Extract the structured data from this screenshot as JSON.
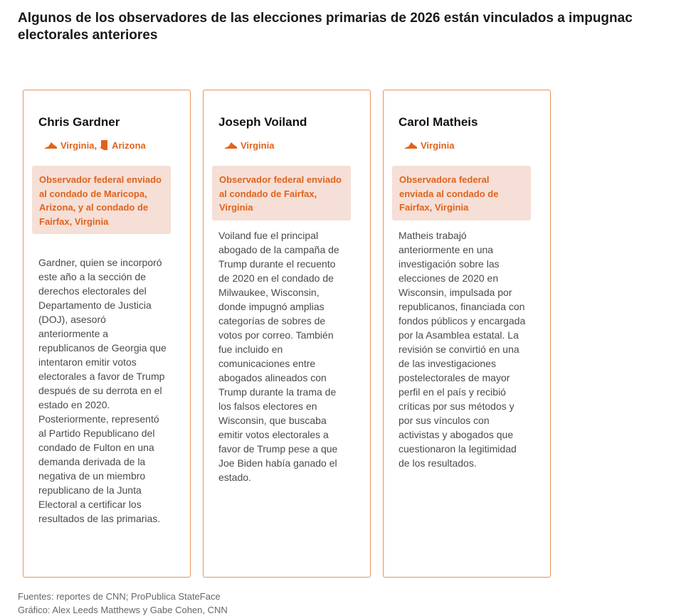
{
  "title": "Algunos de los observadores de las elecciones primarias de 2026 están vinculados a impugnac\nelectorales anteriores",
  "cards": [
    {
      "name": "Chris Gardner",
      "states": [
        {
          "icon": "virginia-icon",
          "label": "Virginia,"
        },
        {
          "icon": "arizona-icon",
          "label": "Arizona"
        }
      ],
      "role": "Observador federal enviado al condado de Maricopa, Arizona, y al condado de Fairfax, Virginia",
      "bio": "Gardner, quien se incorporó este año a la sección de derechos electorales del Departamento de Justicia (DOJ), asesoró anteriormente a republicanos de Georgia que intentaron emitir votos electorales a favor de Trump después de su derrota en el estado en 2020. Posteriormente, representó al Partido Republicano del condado de Fulton en una demanda derivada de la negativa de un miembro republicano de la Junta Electoral a certificar los resultados de las primarias."
    },
    {
      "name": "Joseph Voiland",
      "states": [
        {
          "icon": "virginia-icon",
          "label": "Virginia"
        }
      ],
      "role": "Observador federal enviado al condado de Fairfax, Virginia",
      "bio": "Voiland fue el principal abogado de la campaña de Trump durante el recuento de 2020 en el condado de Milwaukee, Wisconsin, donde impugnó amplias categorías de sobres de votos por correo. También fue incluido en comunicaciones entre abogados alineados con Trump durante la trama de los falsos electores en Wisconsin, que buscaba emitir votos electorales a favor de Trump pese a que Joe Biden había ganado el estado."
    },
    {
      "name": "Carol Matheis",
      "states": [
        {
          "icon": "virginia-icon",
          "label": "Virginia"
        }
      ],
      "role": "Observadora federal enviada al condado de Fairfax, Virginia",
      "bio": "Matheis trabajó anteriormente en una investigación sobre las elecciones de 2020 en Wisconsin, impulsada por republicanos, financiada con fondos públicos y encargada por la Asamblea estatal. La revisión se convirtió en una de las investigaciones postelectorales de mayor perfil en el país y recibió críticas por sus métodos y por sus vínculos con activistas y abogados que cuestionaron la legitimidad de los resultados."
    }
  ],
  "footer": {
    "sources": "Fuentes: reportes de CNN; ProPublica StateFace",
    "credit": "Gráfico: Alex Leeds Matthews y Gabe Cohen, CNN"
  },
  "colors": {
    "accent": "#e0631b",
    "role_bg": "#f5dfd7",
    "border": "#e8915c"
  }
}
